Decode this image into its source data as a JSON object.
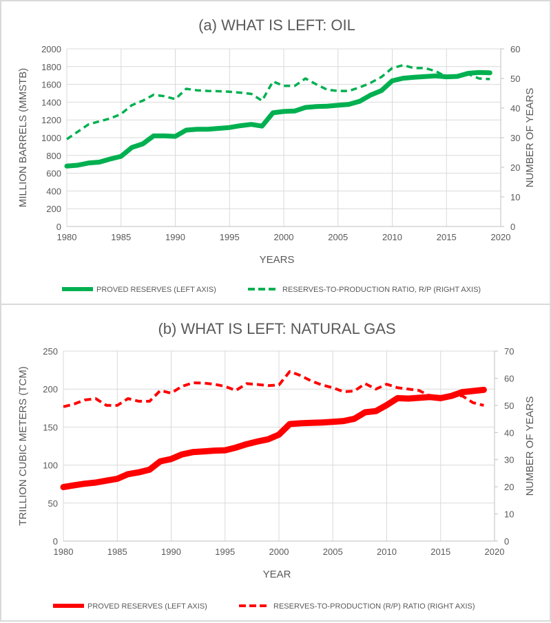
{
  "chart_data": [
    {
      "type": "line",
      "title": "(a) WHAT IS LEFT: OIL",
      "xlabel": "YEARS",
      "ylabel": "MILLION BARRELS (MMSTB)",
      "y2label": "NUMBER OF YEARS",
      "xlim": [
        1980,
        2020
      ],
      "ylim": [
        0,
        2000
      ],
      "y2lim": [
        0,
        60
      ],
      "xticks": [
        1980,
        1985,
        1990,
        1995,
        2000,
        2005,
        2010,
        2015,
        2020
      ],
      "yticks": [
        0,
        200,
        400,
        600,
        800,
        1000,
        1200,
        1400,
        1600,
        1800,
        2000
      ],
      "y2ticks": [
        0,
        10,
        20,
        30,
        40,
        50,
        60
      ],
      "grid": true,
      "legend_position": "bottom",
      "x": [
        1980,
        1981,
        1982,
        1983,
        1984,
        1985,
        1986,
        1987,
        1988,
        1989,
        1990,
        1991,
        1992,
        1993,
        1994,
        1995,
        1996,
        1997,
        1998,
        1999,
        2000,
        2001,
        2002,
        2003,
        2004,
        2005,
        2006,
        2007,
        2008,
        2009,
        2010,
        2011,
        2012,
        2013,
        2014,
        2015,
        2016,
        2017,
        2018,
        2019
      ],
      "series": [
        {
          "name": "PROVED RESERVES (LEFT AXIS)",
          "axis": "left",
          "style": "solid",
          "color": "#00b050",
          "values": [
            680,
            690,
            715,
            725,
            760,
            790,
            890,
            930,
            1020,
            1020,
            1015,
            1085,
            1095,
            1095,
            1105,
            1115,
            1135,
            1150,
            1130,
            1280,
            1295,
            1300,
            1340,
            1350,
            1355,
            1365,
            1375,
            1410,
            1480,
            1530,
            1640,
            1670,
            1680,
            1688,
            1695,
            1685,
            1690,
            1725,
            1735,
            1730
          ]
        },
        {
          "name": "RESERVES-TO-PRODUCTION RATIO, R/P (RIGHT AXIS)",
          "axis": "right",
          "style": "dashed",
          "color": "#00b050",
          "values": [
            29.5,
            32,
            34.5,
            35.5,
            36.5,
            38,
            41,
            42.5,
            44.5,
            44,
            43,
            46.5,
            46,
            45.8,
            45.7,
            45.5,
            45.2,
            44.8,
            42.5,
            49,
            47.5,
            47.5,
            50,
            48,
            46.2,
            45.8,
            45.8,
            47,
            48.5,
            50.5,
            53.5,
            54.5,
            53.5,
            53.5,
            52.5,
            50.5,
            51,
            51.5,
            50,
            49.8
          ]
        }
      ]
    },
    {
      "type": "line",
      "title": "(b) WHAT IS LEFT: NATURAL GAS",
      "xlabel": "YEAR",
      "ylabel": "TRILLION CUBIC METERS (TCM)",
      "y2label": "NUMBER OF YEARS",
      "xlim": [
        1980,
        2020
      ],
      "ylim": [
        0,
        250
      ],
      "y2lim": [
        0,
        70
      ],
      "xticks": [
        1980,
        1985,
        1990,
        1995,
        2000,
        2005,
        2010,
        2015,
        2020
      ],
      "yticks": [
        0,
        50,
        100,
        150,
        200,
        250
      ],
      "y2ticks": [
        0,
        10,
        20,
        30,
        40,
        50,
        60,
        70
      ],
      "grid": true,
      "legend_position": "bottom",
      "x": [
        1980,
        1981,
        1982,
        1983,
        1984,
        1985,
        1986,
        1987,
        1988,
        1989,
        1990,
        1991,
        1992,
        1993,
        1994,
        1995,
        1996,
        1997,
        1998,
        1999,
        2000,
        2001,
        2002,
        2003,
        2004,
        2005,
        2006,
        2007,
        2008,
        2009,
        2010,
        2011,
        2012,
        2013,
        2014,
        2015,
        2016,
        2017,
        2018,
        2019
      ],
      "series": [
        {
          "name": "PROVED RESERVES (LEFT AXIS)",
          "axis": "left",
          "style": "solid",
          "color": "#ff0000",
          "values": [
            71,
            73.5,
            75.5,
            77,
            79.5,
            82,
            88,
            90.5,
            94,
            105,
            108,
            114,
            117,
            118,
            119,
            119.5,
            123,
            127.5,
            131,
            134,
            140,
            154,
            155,
            155.5,
            156,
            157,
            158,
            161,
            169.5,
            171,
            179,
            188,
            187.5,
            188.5,
            189.5,
            188,
            191,
            196,
            197.5,
            199
          ]
        },
        {
          "name": "RESERVES-TO-PRODUCTION (R/P) RATIO (RIGHT AXIS)",
          "axis": "right",
          "style": "dashed",
          "color": "#ff0000",
          "values": [
            49.5,
            50.5,
            52,
            52.5,
            50,
            50,
            52.5,
            51.5,
            51.5,
            55.5,
            54.5,
            57,
            58.3,
            58.2,
            57.8,
            57,
            55.5,
            58,
            57.7,
            57.3,
            57.5,
            62.5,
            61,
            59,
            57.5,
            56.5,
            55,
            55.3,
            58,
            56,
            57.8,
            56.5,
            56,
            55.5,
            53.5,
            53,
            53.5,
            53.5,
            51,
            50
          ]
        }
      ]
    }
  ]
}
